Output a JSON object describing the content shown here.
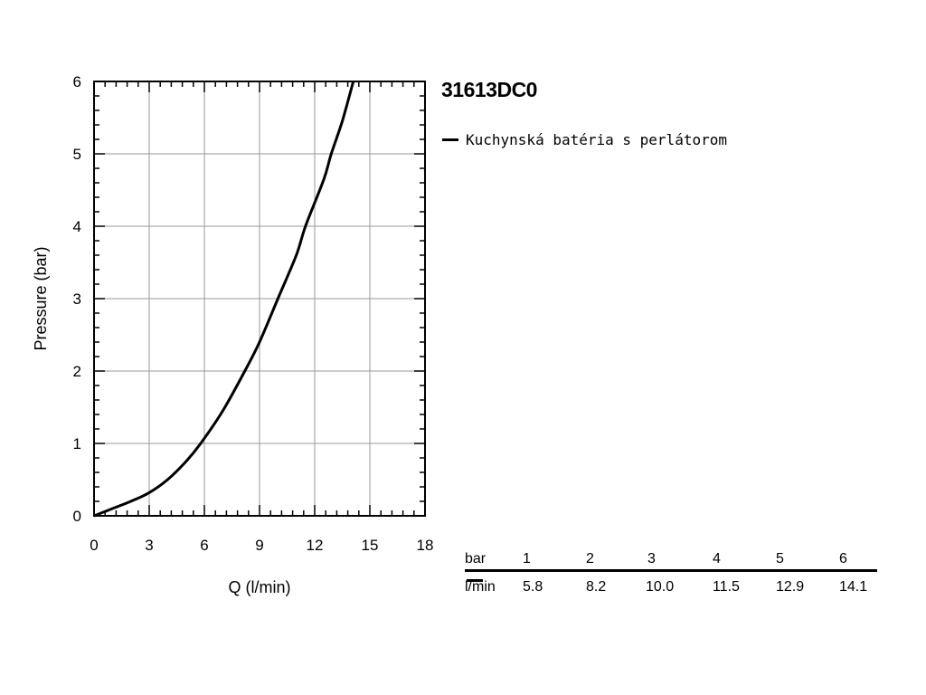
{
  "chart_data": {
    "type": "line",
    "title": "31613DC0",
    "xlabel": "Q (l/min)",
    "ylabel": "Pressure (bar)",
    "xlim": [
      0,
      18
    ],
    "ylim": [
      0,
      6
    ],
    "xticks": [
      0,
      3,
      6,
      9,
      12,
      15,
      18
    ],
    "yticks": [
      0,
      1,
      2,
      3,
      4,
      5,
      6
    ],
    "grid": true,
    "legend_position": "top-right",
    "series": [
      {
        "name": "Kuchynská batéria s perlátorom",
        "color": "#000000",
        "x": [
          0,
          1,
          2,
          3,
          4,
          5,
          5.8,
          7,
          8.2,
          9,
          10.0,
          11,
          11.5,
          12.5,
          12.9,
          13.5,
          14.1
        ],
        "y": [
          0,
          0.1,
          0.2,
          0.32,
          0.5,
          0.75,
          1,
          1.45,
          2,
          2.4,
          3,
          3.6,
          4,
          4.65,
          5,
          5.45,
          6
        ]
      }
    ]
  },
  "flow_table": {
    "pressure_unit": "bar",
    "flow_unit": "l/min",
    "pressures": [
      "1",
      "2",
      "3",
      "4",
      "5",
      "6"
    ],
    "flows": [
      "5.8",
      "8.2",
      "10.0",
      "11.5",
      "12.9",
      "14.1"
    ]
  }
}
